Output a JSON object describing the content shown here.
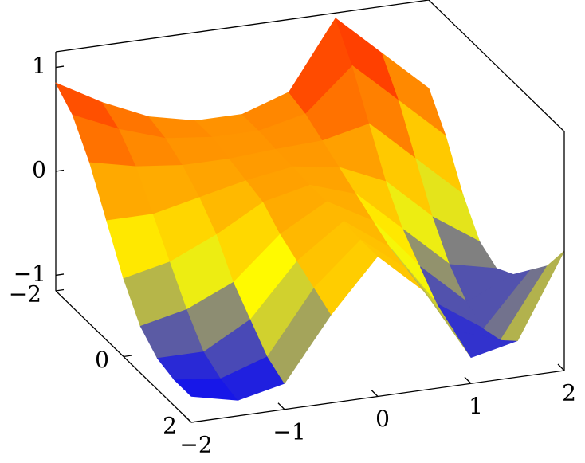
{
  "chart_data": {
    "type": "surface",
    "x": [
      -2,
      -1.5,
      -1,
      -0.5,
      0,
      0.5,
      1,
      1.5,
      2
    ],
    "y": [
      -2,
      -1.5,
      -1,
      -0.5,
      0,
      0.5,
      1,
      1.5,
      2
    ],
    "z": [
      [
        0.85,
        0.6,
        0.4,
        0.3,
        0.3,
        0.45,
        1.1,
        0.7,
        0.3
      ],
      [
        0.7,
        0.5,
        0.35,
        0.3,
        0.3,
        0.4,
        0.8,
        0.4,
        0.0
      ],
      [
        0.4,
        0.3,
        0.25,
        0.25,
        0.28,
        0.3,
        0.4,
        0.0,
        -0.4
      ],
      [
        0.0,
        0.0,
        0.1,
        0.2,
        0.27,
        0.2,
        0.0,
        -0.4,
        -0.7
      ],
      [
        -0.4,
        -0.3,
        -0.1,
        0.15,
        0.25,
        0.1,
        -0.3,
        -0.7,
        -0.8
      ],
      [
        -0.7,
        -0.6,
        -0.4,
        0.0,
        0.25,
        0.0,
        -0.5,
        -0.9,
        -0.7
      ],
      [
        -0.85,
        -0.85,
        -0.6,
        -0.1,
        0.22,
        -0.1,
        -0.7,
        -1.0,
        -0.5
      ],
      [
        -0.9,
        -0.95,
        -0.8,
        -0.2,
        0.2,
        -0.15,
        -0.8,
        -0.95,
        -0.3
      ],
      [
        -0.9,
        -1.0,
        -0.9,
        -0.3,
        0.2,
        -0.2,
        -0.9,
        -0.8,
        0.0
      ]
    ],
    "xlim": [
      -2,
      2
    ],
    "ylim": [
      -2,
      2
    ],
    "zlim": [
      -1.15,
      1.15
    ],
    "xticks": [
      {
        "value": -2,
        "label": "−2"
      },
      {
        "value": -1,
        "label": "−1"
      },
      0,
      1,
      2
    ],
    "yticks": [
      {
        "value": -2,
        "label": "−2"
      },
      0,
      2
    ],
    "zticks": [
      {
        "value": -1,
        "label": "−1"
      },
      0,
      1
    ],
    "colormap": [
      "#0000ff",
      "#ffff00",
      "#ff8000",
      "#ff0000"
    ]
  }
}
